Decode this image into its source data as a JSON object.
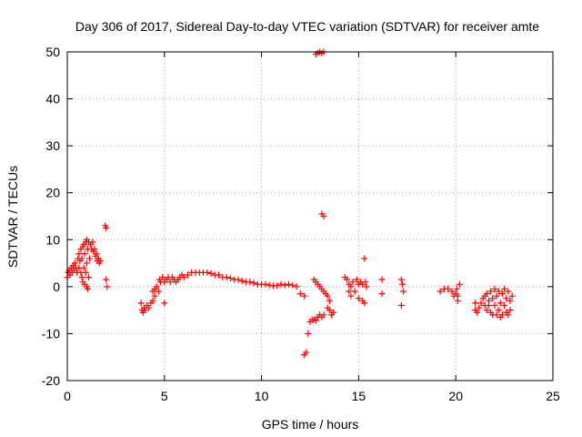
{
  "chart_data": {
    "type": "scatter",
    "title": "Day 306 of 2017, Sidereal Day-to-day VTEC variation (SDTVAR) for receiver amte",
    "xlabel": "GPS time / hours",
    "ylabel": "SDTVAR / TECUs",
    "xlim": [
      0,
      25
    ],
    "ylim": [
      -20,
      50
    ],
    "xticks": [
      0,
      5,
      10,
      15,
      20,
      25
    ],
    "yticks": [
      -20,
      -10,
      0,
      10,
      20,
      30,
      40,
      50
    ],
    "xtick_labels": [
      "0",
      "5",
      "10",
      "15",
      "20",
      "25"
    ],
    "ytick_labels": [
      "-20",
      "-10",
      "0",
      "10",
      "20",
      "30",
      "40",
      "50"
    ],
    "grid": true,
    "marker": "+",
    "color": "#ff0000",
    "series": [
      {
        "name": "SDTVAR",
        "points": [
          [
            0.0,
            2.0
          ],
          [
            0.05,
            3.0
          ],
          [
            0.1,
            3.5
          ],
          [
            0.15,
            2.5
          ],
          [
            0.2,
            4.0
          ],
          [
            0.25,
            3.0
          ],
          [
            0.3,
            4.5
          ],
          [
            0.35,
            3.5
          ],
          [
            0.4,
            5.0
          ],
          [
            0.45,
            4.0
          ],
          [
            0.5,
            3.0
          ],
          [
            0.55,
            6.0
          ],
          [
            0.6,
            4.0
          ],
          [
            0.6,
            7.0
          ],
          [
            0.65,
            5.5
          ],
          [
            0.7,
            3.0
          ],
          [
            0.7,
            8.0
          ],
          [
            0.75,
            2.0
          ],
          [
            0.75,
            6.0
          ],
          [
            0.8,
            1.0
          ],
          [
            0.8,
            8.5
          ],
          [
            0.85,
            4.0
          ],
          [
            0.85,
            9.0
          ],
          [
            0.9,
            0.5
          ],
          [
            0.9,
            7.0
          ],
          [
            0.95,
            9.5
          ],
          [
            0.95,
            3.0
          ],
          [
            1.0,
            10.0
          ],
          [
            1.0,
            0.0
          ],
          [
            1.0,
            5.0
          ],
          [
            1.05,
            -0.5
          ],
          [
            1.05,
            8.0
          ],
          [
            1.1,
            9.5
          ],
          [
            1.1,
            2.0
          ],
          [
            1.15,
            6.0
          ],
          [
            1.2,
            9.0
          ],
          [
            1.25,
            8.0
          ],
          [
            1.3,
            9.5
          ],
          [
            1.35,
            7.5
          ],
          [
            1.4,
            8.0
          ],
          [
            1.45,
            6.5
          ],
          [
            1.5,
            7.0
          ],
          [
            1.55,
            5.5
          ],
          [
            1.6,
            6.0
          ],
          [
            1.65,
            5.0
          ],
          [
            1.7,
            5.5
          ],
          [
            1.95,
            13.0
          ],
          [
            2.0,
            12.5
          ],
          [
            2.0,
            1.5
          ],
          [
            2.05,
            0.0
          ],
          [
            3.8,
            -3.5
          ],
          [
            3.85,
            -5.0
          ],
          [
            3.9,
            -5.5
          ],
          [
            3.95,
            -4.5
          ],
          [
            4.0,
            -5.0
          ],
          [
            4.1,
            -4.0
          ],
          [
            4.2,
            -4.5
          ],
          [
            4.3,
            -3.5
          ],
          [
            4.4,
            -3.0
          ],
          [
            4.5,
            -2.0
          ],
          [
            4.4,
            -1.0
          ],
          [
            4.5,
            -0.5
          ],
          [
            4.6,
            0.0
          ],
          [
            4.7,
            -1.0
          ],
          [
            4.75,
            1.5
          ],
          [
            4.8,
            1.0
          ],
          [
            4.9,
            2.0
          ],
          [
            5.0,
            1.0
          ],
          [
            5.0,
            -3.5
          ],
          [
            5.1,
            1.5
          ],
          [
            5.2,
            2.0
          ],
          [
            5.3,
            1.0
          ],
          [
            5.4,
            2.0
          ],
          [
            5.5,
            1.5
          ],
          [
            5.6,
            1.0
          ],
          [
            5.7,
            1.5
          ],
          [
            5.8,
            2.0
          ],
          [
            5.9,
            2.5
          ],
          [
            6.0,
            2.0
          ],
          [
            6.2,
            2.5
          ],
          [
            6.4,
            3.0
          ],
          [
            6.6,
            3.0
          ],
          [
            6.8,
            3.0
          ],
          [
            7.0,
            3.0
          ],
          [
            7.2,
            3.0
          ],
          [
            7.4,
            2.8
          ],
          [
            7.6,
            2.5
          ],
          [
            7.8,
            2.5
          ],
          [
            8.0,
            2.0
          ],
          [
            8.2,
            2.0
          ],
          [
            8.4,
            1.8
          ],
          [
            8.6,
            1.5
          ],
          [
            8.8,
            1.5
          ],
          [
            9.0,
            1.2
          ],
          [
            9.2,
            1.0
          ],
          [
            9.4,
            1.0
          ],
          [
            9.6,
            0.8
          ],
          [
            9.8,
            0.5
          ],
          [
            10.0,
            0.5
          ],
          [
            10.2,
            0.5
          ],
          [
            10.4,
            0.3
          ],
          [
            10.6,
            0.2
          ],
          [
            10.8,
            0.2
          ],
          [
            11.0,
            0.5
          ],
          [
            11.2,
            0.3
          ],
          [
            11.4,
            0.5
          ],
          [
            11.6,
            0.3
          ],
          [
            11.8,
            0.0
          ],
          [
            12.0,
            -1.5
          ],
          [
            12.2,
            -2.0
          ],
          [
            12.2,
            -14.5
          ],
          [
            12.3,
            -14.0
          ],
          [
            12.4,
            -10.0
          ],
          [
            12.5,
            -7.5
          ],
          [
            12.6,
            -7.0
          ],
          [
            12.7,
            -7.0
          ],
          [
            12.8,
            -7.2
          ],
          [
            12.9,
            -6.5
          ],
          [
            13.0,
            -6.0
          ],
          [
            13.1,
            -6.5
          ],
          [
            13.2,
            -6.0
          ],
          [
            12.7,
            1.5
          ],
          [
            12.8,
            1.0
          ],
          [
            12.9,
            0.5
          ],
          [
            13.0,
            0.0
          ],
          [
            13.1,
            -0.5
          ],
          [
            13.2,
            -1.0
          ],
          [
            13.3,
            -1.5
          ],
          [
            13.4,
            -2.0
          ],
          [
            13.5,
            -3.0
          ],
          [
            13.5,
            -5.0
          ],
          [
            13.6,
            -6.0
          ],
          [
            13.4,
            -4.5
          ],
          [
            12.8,
            49.5
          ],
          [
            12.9,
            49.8
          ],
          [
            13.0,
            50.0
          ],
          [
            13.1,
            49.7
          ],
          [
            13.2,
            50.0
          ],
          [
            13.1,
            15.5
          ],
          [
            13.2,
            15.0
          ],
          [
            13.7,
            -5.5
          ],
          [
            14.3,
            2.0
          ],
          [
            14.4,
            1.5
          ],
          [
            14.5,
            -1.0
          ],
          [
            14.5,
            0.5
          ],
          [
            14.6,
            -2.0
          ],
          [
            14.6,
            0.0
          ],
          [
            14.7,
            1.0
          ],
          [
            14.8,
            -1.0
          ],
          [
            14.9,
            1.5
          ],
          [
            15.0,
            0.5
          ],
          [
            15.0,
            -2.5
          ],
          [
            15.1,
            1.0
          ],
          [
            15.2,
            -3.0
          ],
          [
            15.2,
            0.5
          ],
          [
            15.3,
            6.0
          ],
          [
            15.3,
            -3.5
          ],
          [
            15.4,
            0.0
          ],
          [
            15.35,
            1.0
          ],
          [
            16.2,
            1.5
          ],
          [
            16.2,
            -1.5
          ],
          [
            17.2,
            1.5
          ],
          [
            17.25,
            0.5
          ],
          [
            17.3,
            -1.0
          ],
          [
            17.2,
            -4.0
          ],
          [
            19.2,
            -1.0
          ],
          [
            19.4,
            -0.5
          ],
          [
            19.6,
            -0.5
          ],
          [
            19.8,
            -1.0
          ],
          [
            19.9,
            -2.0
          ],
          [
            20.0,
            -1.5
          ],
          [
            20.05,
            -0.5
          ],
          [
            20.1,
            -3.0
          ],
          [
            20.2,
            0.5
          ],
          [
            20.1,
            -2.0
          ],
          [
            21.0,
            -3.5
          ],
          [
            21.0,
            -5.0
          ],
          [
            21.1,
            -5.5
          ],
          [
            21.2,
            -4.5
          ],
          [
            21.3,
            -3.5
          ],
          [
            21.4,
            -2.5
          ],
          [
            21.5,
            -4.0
          ],
          [
            21.5,
            -2.0
          ],
          [
            21.6,
            -5.0
          ],
          [
            21.6,
            -1.5
          ],
          [
            21.7,
            -3.0
          ],
          [
            21.8,
            -5.5
          ],
          [
            21.8,
            -1.0
          ],
          [
            21.9,
            -2.5
          ],
          [
            22.0,
            -4.0
          ],
          [
            22.0,
            -0.5
          ],
          [
            22.1,
            -2.0
          ],
          [
            22.2,
            -5.0
          ],
          [
            22.2,
            -1.0
          ],
          [
            22.3,
            -3.5
          ],
          [
            22.4,
            -6.0
          ],
          [
            22.4,
            -1.5
          ],
          [
            22.5,
            -4.0
          ],
          [
            22.5,
            -0.5
          ],
          [
            22.6,
            -2.5
          ],
          [
            22.6,
            -5.5
          ],
          [
            22.7,
            -1.0
          ],
          [
            22.7,
            -6.0
          ],
          [
            22.8,
            -3.0
          ],
          [
            22.8,
            -5.0
          ],
          [
            22.3,
            -6.5
          ],
          [
            22.1,
            -6.0
          ],
          [
            21.9,
            -6.0
          ],
          [
            21.7,
            -4.0
          ],
          [
            22.9,
            -2.0
          ]
        ]
      }
    ]
  }
}
